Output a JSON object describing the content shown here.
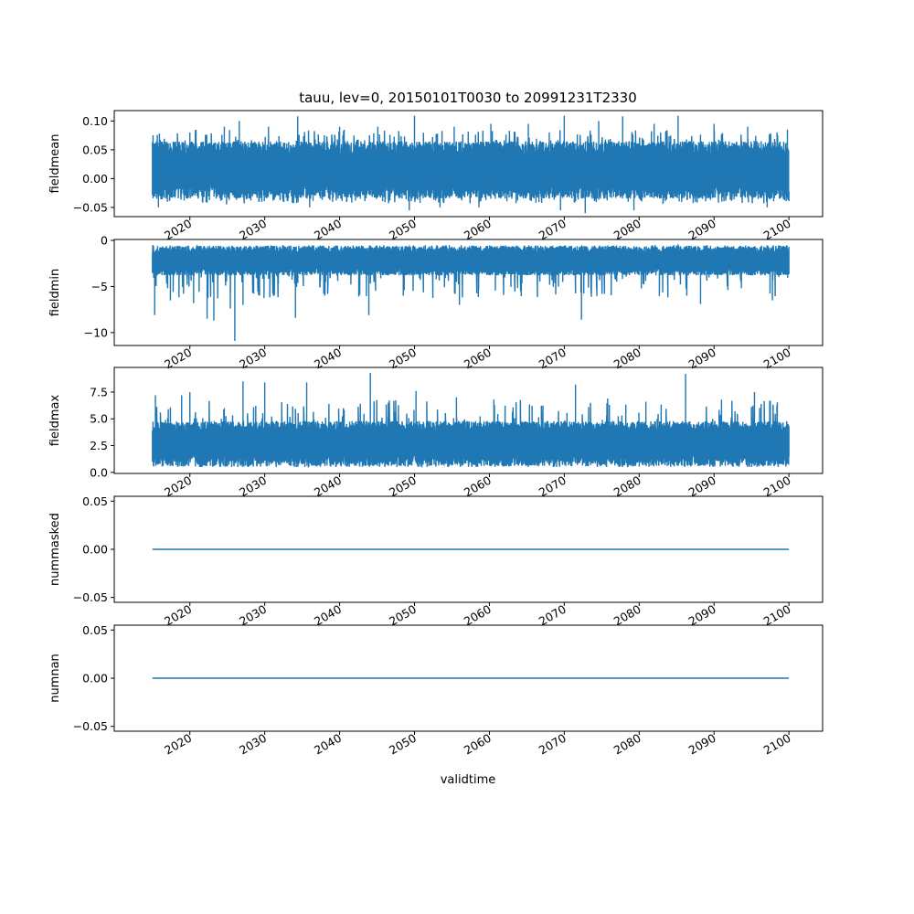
{
  "figure": {
    "title": "tauu, lev=0, 20150101T0030 to 20991231T2330",
    "xlabel": "validtime",
    "line_color": "#1f77b4"
  },
  "chart_data": [
    {
      "type": "line",
      "name": "fieldmean",
      "ylabel": "fieldmean",
      "x_range": [
        2015.0,
        2100.0
      ],
      "xlim": [
        2009.9,
        2104.5
      ],
      "ylim": [
        -0.066,
        0.118
      ],
      "yticks": [
        -0.05,
        0.0,
        0.05,
        0.1
      ],
      "ytick_labels": [
        "−0.05",
        "0.00",
        "0.05",
        "0.10"
      ],
      "xticks": [
        2020,
        2030,
        2040,
        2050,
        2060,
        2070,
        2080,
        2090,
        2100
      ],
      "xtick_labels": [
        "2020",
        "2030",
        "2040",
        "2050",
        "2060",
        "2070",
        "2080",
        "2090",
        "2100"
      ],
      "band": {
        "low": -0.035,
        "high": 0.065,
        "min": -0.058,
        "max": 0.109
      },
      "spikes_high": [
        [
          2020.0,
          0.08
        ],
        [
          2024.6,
          0.09
        ],
        [
          2026.6,
          0.1
        ],
        [
          2030.5,
          0.09
        ],
        [
          2034.4,
          0.108
        ],
        [
          2040.0,
          0.09
        ],
        [
          2045.1,
          0.09
        ],
        [
          2050.0,
          0.109
        ],
        [
          2055.3,
          0.09
        ],
        [
          2060.2,
          0.095
        ],
        [
          2065.2,
          0.095
        ],
        [
          2070.0,
          0.109
        ],
        [
          2074.6,
          0.1
        ],
        [
          2077.8,
          0.108
        ],
        [
          2082.0,
          0.095
        ],
        [
          2085.2,
          0.109
        ],
        [
          2090.0,
          0.095
        ],
        [
          2094.5,
          0.09
        ],
        [
          2099.8,
          0.085
        ]
      ],
      "spikes_low": [
        [
          2015.8,
          -0.05
        ],
        [
          2024.9,
          -0.045
        ],
        [
          2036.0,
          -0.05
        ],
        [
          2049.3,
          -0.055
        ],
        [
          2053.4,
          -0.05
        ],
        [
          2058.6,
          -0.05
        ],
        [
          2069.5,
          -0.055
        ],
        [
          2072.8,
          -0.06
        ],
        [
          2079.3,
          -0.055
        ],
        [
          2097.1,
          -0.05
        ]
      ]
    },
    {
      "type": "line",
      "name": "fieldmin",
      "ylabel": "fieldmin",
      "x_range": [
        2015.0,
        2100.0
      ],
      "xlim": [
        2009.9,
        2104.5
      ],
      "ylim": [
        -11.4,
        0.1
      ],
      "yticks": [
        -10,
        -5,
        0
      ],
      "ytick_labels": [
        "−10",
        "−5",
        "0"
      ],
      "xticks": [
        2020,
        2030,
        2040,
        2050,
        2060,
        2070,
        2080,
        2090,
        2100
      ],
      "xtick_labels": [
        "2020",
        "2030",
        "2040",
        "2050",
        "2060",
        "2070",
        "2080",
        "2090",
        "2100"
      ],
      "band": {
        "low": -3.8,
        "high": -0.6,
        "min": -10.9,
        "max": -0.4
      },
      "spikes_high": [],
      "spikes_low": [
        [
          2015.3,
          -8.1
        ],
        [
          2017.4,
          -6.5
        ],
        [
          2020.5,
          -6.8
        ],
        [
          2022.3,
          -8.5
        ],
        [
          2023.2,
          -8.7
        ],
        [
          2025.4,
          -7.4
        ],
        [
          2026.0,
          -10.9
        ],
        [
          2027.1,
          -7.0
        ],
        [
          2029.3,
          -6.0
        ],
        [
          2034.1,
          -8.4
        ],
        [
          2038.0,
          -6.0
        ],
        [
          2043.9,
          -8.1
        ],
        [
          2048.5,
          -6.0
        ],
        [
          2056.0,
          -7.0
        ],
        [
          2072.3,
          -8.6
        ],
        [
          2088.2,
          -6.9
        ],
        [
          2097.8,
          -6.5
        ]
      ]
    },
    {
      "type": "line",
      "name": "fieldmax",
      "ylabel": "fieldmax",
      "x_range": [
        2015.0,
        2100.0
      ],
      "xlim": [
        2009.9,
        2104.5
      ],
      "ylim": [
        -0.1,
        9.8
      ],
      "yticks": [
        0.0,
        2.5,
        5.0,
        7.5
      ],
      "ytick_labels": [
        "0.0",
        "2.5",
        "5.0",
        "7.5"
      ],
      "xticks": [
        2020,
        2030,
        2040,
        2050,
        2060,
        2070,
        2080,
        2090,
        2100
      ],
      "xtick_labels": [
        "2020",
        "2030",
        "2040",
        "2050",
        "2060",
        "2070",
        "2080",
        "2090",
        "2100"
      ],
      "band": {
        "low": 0.6,
        "high": 4.8,
        "min": 0.3,
        "max": 9.3
      },
      "spikes_high": [
        [
          2015.4,
          7.2
        ],
        [
          2018.9,
          7.2
        ],
        [
          2020.0,
          7.5
        ],
        [
          2024.6,
          6.0
        ],
        [
          2027.1,
          8.5
        ],
        [
          2030.0,
          8.4
        ],
        [
          2035.6,
          8.4
        ],
        [
          2040.5,
          6.0
        ],
        [
          2044.1,
          9.3
        ],
        [
          2046.5,
          6.5
        ],
        [
          2050.2,
          7.6
        ],
        [
          2055.6,
          7.0
        ],
        [
          2060.6,
          6.8
        ],
        [
          2065.7,
          6.2
        ],
        [
          2071.5,
          8.2
        ],
        [
          2075.8,
          6.9
        ],
        [
          2080.9,
          6.6
        ],
        [
          2086.2,
          9.2
        ],
        [
          2091.0,
          6.8
        ],
        [
          2095.4,
          7.5
        ],
        [
          2098.4,
          6.3
        ]
      ],
      "spikes_low": []
    },
    {
      "type": "line",
      "name": "nummasked",
      "ylabel": "nummasked",
      "x": [
        2015.0,
        2100.0
      ],
      "y": [
        0.0,
        0.0
      ],
      "xlim": [
        2009.9,
        2104.5
      ],
      "ylim": [
        -0.055,
        0.055
      ],
      "yticks": [
        -0.05,
        0.0,
        0.05
      ],
      "ytick_labels": [
        "−0.05",
        "0.00",
        "0.05"
      ],
      "xticks": [
        2020,
        2030,
        2040,
        2050,
        2060,
        2070,
        2080,
        2090,
        2100
      ],
      "xtick_labels": [
        "2020",
        "2030",
        "2040",
        "2050",
        "2060",
        "2070",
        "2080",
        "2090",
        "2100"
      ]
    },
    {
      "type": "line",
      "name": "numnan",
      "ylabel": "numnan",
      "x": [
        2015.0,
        2100.0
      ],
      "y": [
        0.0,
        0.0
      ],
      "xlim": [
        2009.9,
        2104.5
      ],
      "ylim": [
        -0.055,
        0.055
      ],
      "yticks": [
        -0.05,
        0.0,
        0.05
      ],
      "ytick_labels": [
        "−0.05",
        "0.00",
        "0.05"
      ],
      "xticks": [
        2020,
        2030,
        2040,
        2050,
        2060,
        2070,
        2080,
        2090,
        2100
      ],
      "xtick_labels": [
        "2020",
        "2030",
        "2040",
        "2050",
        "2060",
        "2070",
        "2080",
        "2090",
        "2100"
      ]
    }
  ]
}
